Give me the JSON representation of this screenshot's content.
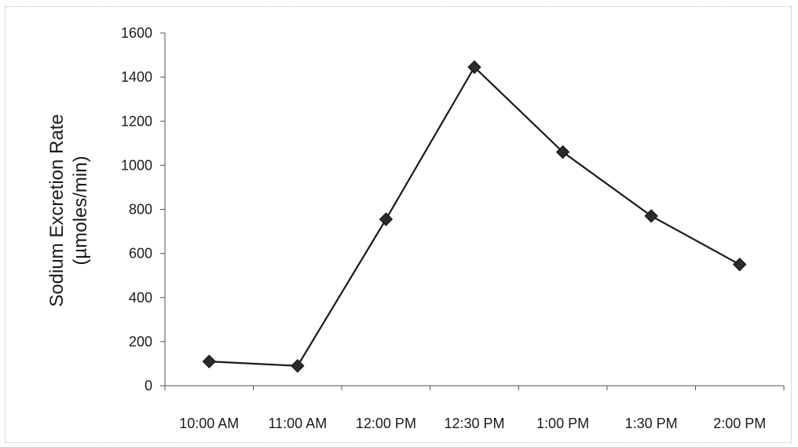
{
  "chart_data": {
    "type": "line",
    "categories": [
      "10:00 AM",
      "11:00 AM",
      "12:00 PM",
      "12:30 PM",
      "1:00 PM",
      "1:30 PM",
      "2:00 PM"
    ],
    "series": [
      {
        "values": [
          110,
          90,
          755,
          1445,
          1060,
          770,
          550
        ]
      }
    ],
    "ylabel_lines": [
      "Sodium Excretion Rate",
      "(µmoles/min)"
    ],
    "ylim": [
      0,
      1600
    ],
    "yticks": [
      0,
      200,
      400,
      600,
      800,
      1000,
      1200,
      1400,
      1600
    ],
    "grid": false,
    "legend": "none",
    "colors": {
      "line": "#1a1a1a",
      "marker": "#2b2b2b",
      "axis": "#555555"
    }
  }
}
